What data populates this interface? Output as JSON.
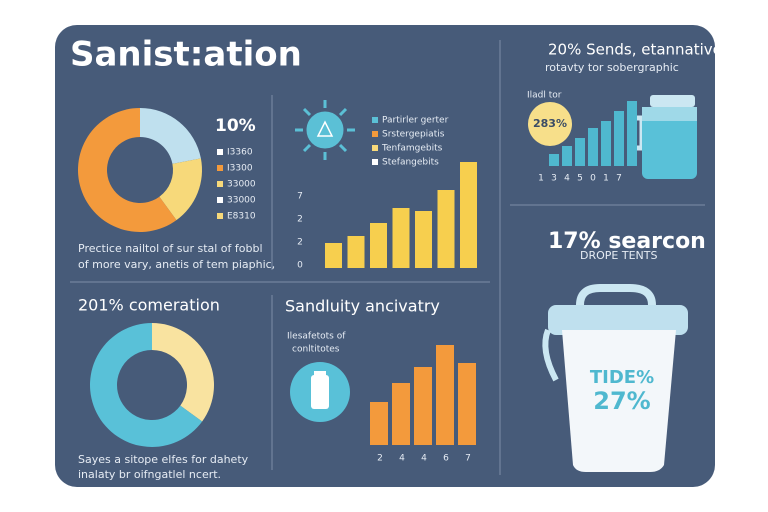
{
  "title": "Sanist:ation",
  "donut_top": {
    "label": "10%",
    "segments": [
      {
        "value": 22,
        "color": "#bfe0ee"
      },
      {
        "value": 18,
        "color": "#f7d97a"
      },
      {
        "value": 60,
        "color": "#f39a3c"
      }
    ],
    "legend": [
      "I3360",
      "I3300",
      "33000",
      "33000",
      "E8310"
    ],
    "legend_colors": [
      "#ffffff",
      "#f39a3c",
      "#f7d97a",
      "#ffffff",
      "#f7d97a"
    ],
    "caption": [
      "Prectice  nailtol of sur stal of fobbl",
      "of more vary, anetis of tem piaphic,"
    ]
  },
  "mid_top": {
    "legend": [
      "Partirler gerter",
      "Srstergepiatis",
      "Tenfamgebits",
      "Stefangebits"
    ],
    "legend_colors": [
      "#5bc0d6",
      "#f39a3c",
      "#f7d97a",
      "#ffffff"
    ],
    "axis": [
      "7",
      "2",
      "2",
      "0"
    ],
    "bars": [
      25,
      32,
      45,
      60,
      57,
      78,
      106
    ],
    "color": "#f7cf4e"
  },
  "right_top": {
    "title": "20% Sends, etannative",
    "subtitle": "rotavty tor sobergraphic",
    "label": "Iladl tor",
    "badge": "283%",
    "bars": [
      12,
      20,
      28,
      38,
      45,
      55,
      65
    ],
    "color": "#4fb8cf",
    "axis": [
      "1",
      "3",
      "4",
      "5",
      "0",
      "1",
      "7"
    ]
  },
  "right_mid": {
    "title": "17% searcon",
    "subtitle": "DROPE TENTS",
    "bucket": [
      "TIDE%",
      "27%"
    ]
  },
  "donut_bottom": {
    "title": "201% comeration",
    "segments": [
      {
        "value": 35,
        "color": "#f9e3a0"
      },
      {
        "value": 65,
        "color": "#59c1d8"
      }
    ],
    "caption": [
      "Sayes a sitope elfes for dahety",
      "inalaty br oifngatlel ncert."
    ]
  },
  "mid_bottom": {
    "title": "Sandluity ancivatry",
    "note": [
      "Ilesafetots of",
      "conltitotes"
    ],
    "bars": [
      43,
      62,
      78,
      100,
      82
    ],
    "color": "#f39a3c",
    "axis": [
      "2",
      "4",
      "4",
      "6",
      "7"
    ]
  }
}
